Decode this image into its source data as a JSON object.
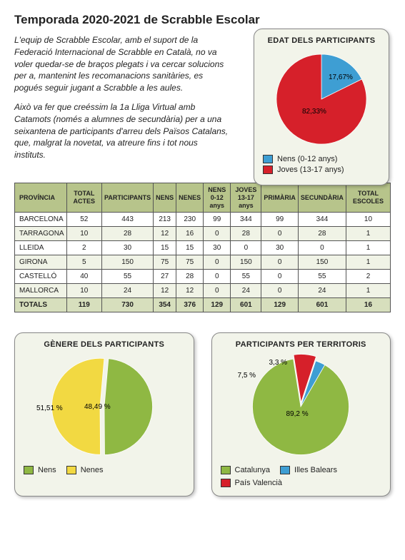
{
  "title": "Temporada 2020-2021 de Scrabble Escolar",
  "intro": {
    "p1": "L'equip de Scrabble Escolar, amb el suport de la Federació Internacional de Scrabble en Català, no va voler quedar-se de braços plegats i va cercar solucions per a, mantenint les recomanacions sanitàries, es pogués seguir jugant a Scrabble a les aules.",
    "p2": "Això va fer que creéssim la 1a Lliga Virtual amb Catamots (només a alumnes de secundària) per a una seixantena de participants d'arreu dels Països Catalans, que, malgrat la novetat, va atreure fins i tot nous instituts."
  },
  "colors": {
    "green": "#8fb843",
    "yellow": "#f2d942",
    "red": "#d6202a",
    "blue": "#3e9ed3",
    "card_bg": "#f2f4ea",
    "th_bg": "#b7c48b"
  },
  "edat_chart": {
    "title": "EDAT DELS PARTICIPANTS",
    "slices": [
      {
        "label": "17,67%",
        "value": 17.67,
        "color": "#3e9ed3",
        "legend": "Nens (0-12 anys)"
      },
      {
        "label": "82,33%",
        "value": 82.33,
        "color": "#d6202a",
        "legend": "Joves (13-17 anys)"
      }
    ]
  },
  "table": {
    "headers": [
      "PROVÍNCIA",
      "TOTAL ACTES",
      "PARTICIPANTS",
      "NENS",
      "NENES",
      "NENS 0-12 anys",
      "JOVES 13-17 anys",
      "PRIMÀRIA",
      "SECUNDÀRIA",
      "TOTAL ESCOLES"
    ],
    "rows": [
      [
        "BARCELONA",
        "52",
        "443",
        "213",
        "230",
        "99",
        "344",
        "99",
        "344",
        "10"
      ],
      [
        "TARRAGONA",
        "10",
        "28",
        "12",
        "16",
        "0",
        "28",
        "0",
        "28",
        "1"
      ],
      [
        "LLEIDA",
        "2",
        "30",
        "15",
        "15",
        "30",
        "0",
        "30",
        "0",
        "1"
      ],
      [
        "GIRONA",
        "5",
        "150",
        "75",
        "75",
        "0",
        "150",
        "0",
        "150",
        "1"
      ],
      [
        "CASTELLÓ",
        "40",
        "55",
        "27",
        "28",
        "0",
        "55",
        "0",
        "55",
        "2"
      ],
      [
        "MALLORCA",
        "10",
        "24",
        "12",
        "12",
        "0",
        "24",
        "0",
        "24",
        "1"
      ]
    ],
    "totals": [
      "TOTALS",
      "119",
      "730",
      "354",
      "376",
      "129",
      "601",
      "129",
      "601",
      "16"
    ]
  },
  "genere_chart": {
    "title": "GÈNERE DELS PARTICIPANTS",
    "slices": [
      {
        "label": "48,49 %",
        "value": 48.49,
        "color": "#8fb843",
        "legend": "Nens"
      },
      {
        "label": "51,51 %",
        "value": 51.51,
        "color": "#f2d942",
        "legend": "Nenes"
      }
    ]
  },
  "territori_chart": {
    "title": "PARTICIPANTS PER TERRITORIS",
    "slices": [
      {
        "label": "89,2 %",
        "value": 89.2,
        "color": "#8fb843",
        "legend": "Catalunya"
      },
      {
        "label": "7,5 %",
        "value": 7.5,
        "color": "#d6202a",
        "legend": "País Valencià"
      },
      {
        "label": "3,3 %",
        "value": 3.3,
        "color": "#3e9ed3",
        "legend": "Illes Balears"
      }
    ]
  }
}
